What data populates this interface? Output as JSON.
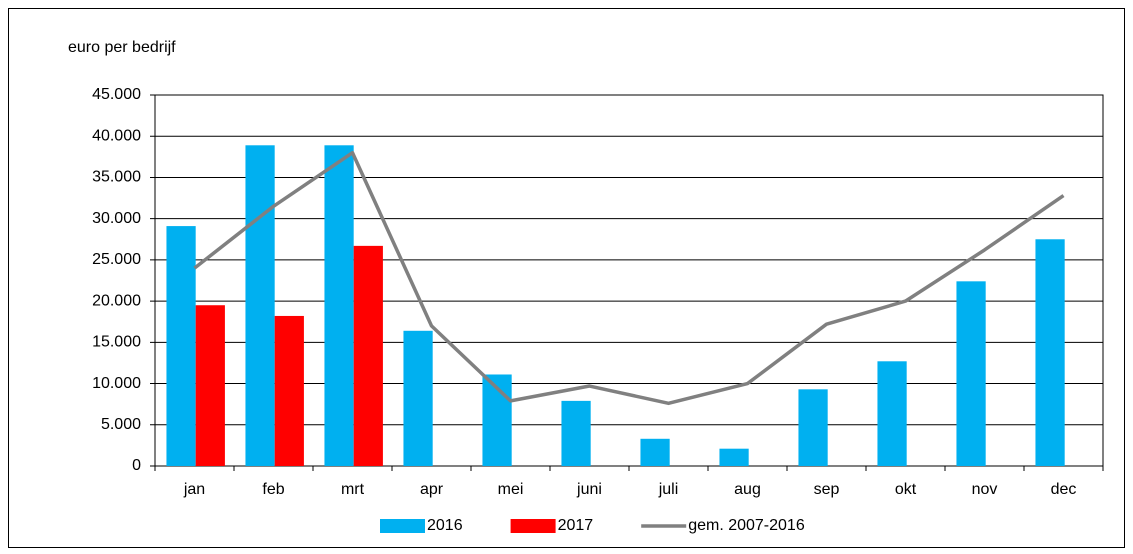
{
  "chart_data": {
    "type": "bar",
    "y_label": "euro per bedrijf",
    "categories": [
      "jan",
      "feb",
      "mrt",
      "apr",
      "mei",
      "juni",
      "juli",
      "aug",
      "sep",
      "okt",
      "nov",
      "dec"
    ],
    "series": [
      {
        "name": "2016",
        "color": "#00b0f0",
        "type": "bar",
        "values": [
          29100,
          38900,
          38900,
          16400,
          11100,
          7900,
          3300,
          2100,
          9300,
          12700,
          22400,
          27500
        ]
      },
      {
        "name": "2017",
        "color": "#ff0000",
        "type": "bar",
        "values": [
          19500,
          18200,
          26700,
          null,
          null,
          null,
          null,
          null,
          null,
          null,
          null,
          null
        ]
      },
      {
        "name": "gem. 2007-2016",
        "color": "#808080",
        "type": "line",
        "values": [
          24000,
          31500,
          38000,
          17000,
          7900,
          9700,
          7600,
          10000,
          17200,
          20000,
          26200,
          32800
        ]
      }
    ],
    "ylim": [
      0,
      45000
    ],
    "yticks": [
      0,
      {
        "value": 5000,
        "label": "5.000"
      },
      {
        "value": 10000,
        "label": "10.000"
      },
      {
        "value": 15000,
        "label": "15.000"
      },
      {
        "value": 20000,
        "label": "20.000"
      },
      {
        "value": 25000,
        "label": "25.000"
      },
      {
        "value": 30000,
        "label": "30.000"
      },
      {
        "value": 35000,
        "label": "35.000"
      },
      {
        "value": 40000,
        "label": "40.000"
      },
      {
        "value": 45000,
        "label": "45.000"
      }
    ],
    "grid": true
  }
}
